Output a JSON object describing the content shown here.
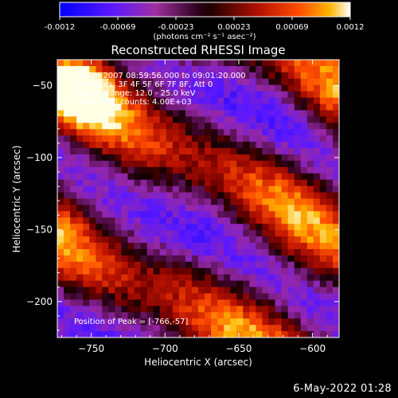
{
  "chart_data": {
    "type": "heatmap",
    "title": "Reconstructed RHESSI Image",
    "xlabel": "Heliocentric X (arcsec)",
    "ylabel": "Heliocentric Y (arcsec)",
    "x_range": [
      -773,
      -582
    ],
    "y_range": [
      -225,
      -32
    ],
    "x_ticks": [
      -750,
      -700,
      -650,
      -600
    ],
    "y_ticks": [
      -50,
      -100,
      -150,
      -200
    ],
    "colorbar": {
      "ticks": [
        "-0.0012",
        "-0.00069",
        "-0.00023",
        "0.00023",
        "0.00069",
        "0.0012"
      ],
      "unit_label": "(photons cm⁻² s⁻¹ asec⁻²)",
      "range": [
        -0.0012,
        0.0012
      ]
    },
    "annotations": [
      "28-Apr-2007 08:59:56.000 to 09:01:20.000",
      "Detectors: 3F 4F 5F 6F 7F 8F, Att 0",
      "Energy Range: 12.0 - 25.0 keV",
      "Clean    Total counts: 4.00E+03"
    ],
    "peak_label": "Position of Peak = [-766,-57]",
    "peak": {
      "x": -766,
      "y": -57
    },
    "grid": false
  },
  "footer": "6-May-2022 01:28"
}
